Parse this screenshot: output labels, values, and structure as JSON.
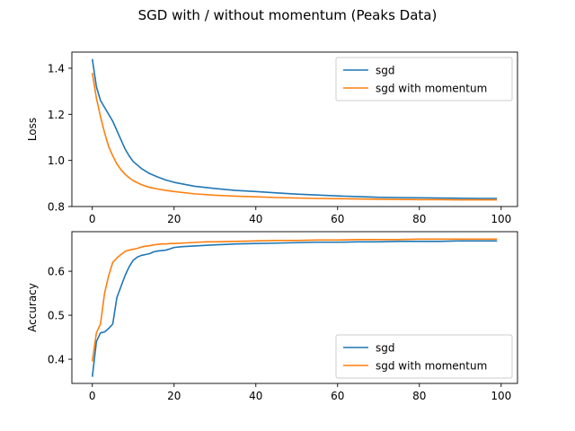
{
  "figure": {
    "title": "SGD with / without momentum (Peaks Data)"
  },
  "chart_data": [
    {
      "type": "line",
      "title": "",
      "xlabel": "",
      "ylabel": "Loss",
      "xlim": [
        -5,
        104
      ],
      "ylim": [
        0.8,
        1.47
      ],
      "xticks": [
        0,
        20,
        40,
        60,
        80,
        100
      ],
      "xtick_labels": [
        "0",
        "20",
        "40",
        "60",
        "80",
        "100"
      ],
      "yticks": [
        0.8,
        1.0,
        1.2,
        1.4
      ],
      "ytick_labels": [
        "0.8",
        "1.0",
        "1.2",
        "1.4"
      ],
      "grid": false,
      "legend_position": "top-right",
      "series": [
        {
          "name": "sgd",
          "color": "#1f77b4",
          "x": [
            0,
            1,
            2,
            3,
            4,
            5,
            6,
            7,
            8,
            9,
            10,
            12,
            14,
            16,
            18,
            20,
            25,
            30,
            35,
            40,
            45,
            50,
            55,
            60,
            65,
            70,
            75,
            80,
            85,
            90,
            95,
            99
          ],
          "y": [
            1.44,
            1.32,
            1.26,
            1.23,
            1.2,
            1.17,
            1.13,
            1.09,
            1.05,
            1.02,
            0.995,
            0.965,
            0.943,
            0.928,
            0.915,
            0.905,
            0.888,
            0.878,
            0.87,
            0.865,
            0.859,
            0.854,
            0.85,
            0.846,
            0.843,
            0.84,
            0.839,
            0.838,
            0.837,
            0.836,
            0.835,
            0.835
          ]
        },
        {
          "name": "sgd with momentum",
          "color": "#ff7f0e",
          "x": [
            0,
            1,
            2,
            3,
            4,
            5,
            6,
            7,
            8,
            9,
            10,
            12,
            14,
            16,
            18,
            20,
            25,
            30,
            35,
            40,
            45,
            50,
            55,
            60,
            65,
            70,
            75,
            80,
            85,
            90,
            95,
            99
          ],
          "y": [
            1.38,
            1.27,
            1.19,
            1.12,
            1.06,
            1.02,
            0.985,
            0.96,
            0.94,
            0.925,
            0.912,
            0.895,
            0.883,
            0.876,
            0.87,
            0.865,
            0.855,
            0.849,
            0.845,
            0.842,
            0.839,
            0.837,
            0.835,
            0.834,
            0.833,
            0.832,
            0.831,
            0.83,
            0.83,
            0.829,
            0.829,
            0.829
          ]
        }
      ]
    },
    {
      "type": "line",
      "title": "",
      "xlabel": "",
      "ylabel": "Accuracy",
      "xlim": [
        -5,
        104
      ],
      "ylim": [
        0.345,
        0.69
      ],
      "xticks": [
        0,
        20,
        40,
        60,
        80,
        100
      ],
      "xtick_labels": [
        "0",
        "20",
        "40",
        "60",
        "80",
        "100"
      ],
      "yticks": [
        0.4,
        0.5,
        0.6
      ],
      "ytick_labels": [
        "0.4",
        "0.5",
        "0.6"
      ],
      "grid": false,
      "legend_position": "bottom-right",
      "series": [
        {
          "name": "sgd",
          "color": "#1f77b4",
          "x": [
            0,
            1,
            2,
            3,
            4,
            5,
            6,
            7,
            8,
            9,
            10,
            11,
            12,
            13,
            14,
            15,
            16,
            17,
            18,
            19,
            20,
            22,
            24,
            26,
            28,
            30,
            35,
            40,
            45,
            50,
            55,
            60,
            65,
            70,
            75,
            80,
            85,
            90,
            95,
            99
          ],
          "y": [
            0.36,
            0.44,
            0.46,
            0.462,
            0.47,
            0.48,
            0.54,
            0.565,
            0.59,
            0.61,
            0.625,
            0.632,
            0.636,
            0.638,
            0.64,
            0.644,
            0.646,
            0.647,
            0.648,
            0.651,
            0.654,
            0.656,
            0.657,
            0.658,
            0.659,
            0.66,
            0.662,
            0.663,
            0.664,
            0.665,
            0.666,
            0.666,
            0.667,
            0.667,
            0.668,
            0.668,
            0.668,
            0.669,
            0.669,
            0.669
          ]
        },
        {
          "name": "sgd with momentum",
          "color": "#ff7f0e",
          "x": [
            0,
            1,
            2,
            3,
            4,
            5,
            6,
            7,
            8,
            9,
            10,
            11,
            12,
            13,
            14,
            15,
            16,
            17,
            18,
            19,
            20,
            22,
            24,
            26,
            28,
            30,
            35,
            40,
            45,
            50,
            55,
            60,
            65,
            70,
            75,
            80,
            85,
            90,
            95,
            99
          ],
          "y": [
            0.395,
            0.46,
            0.48,
            0.55,
            0.59,
            0.62,
            0.63,
            0.638,
            0.645,
            0.648,
            0.65,
            0.652,
            0.655,
            0.657,
            0.658,
            0.66,
            0.661,
            0.662,
            0.662,
            0.663,
            0.663,
            0.664,
            0.665,
            0.666,
            0.667,
            0.667,
            0.668,
            0.669,
            0.67,
            0.67,
            0.671,
            0.671,
            0.672,
            0.672,
            0.672,
            0.673,
            0.673,
            0.673,
            0.673,
            0.673
          ]
        }
      ]
    }
  ]
}
